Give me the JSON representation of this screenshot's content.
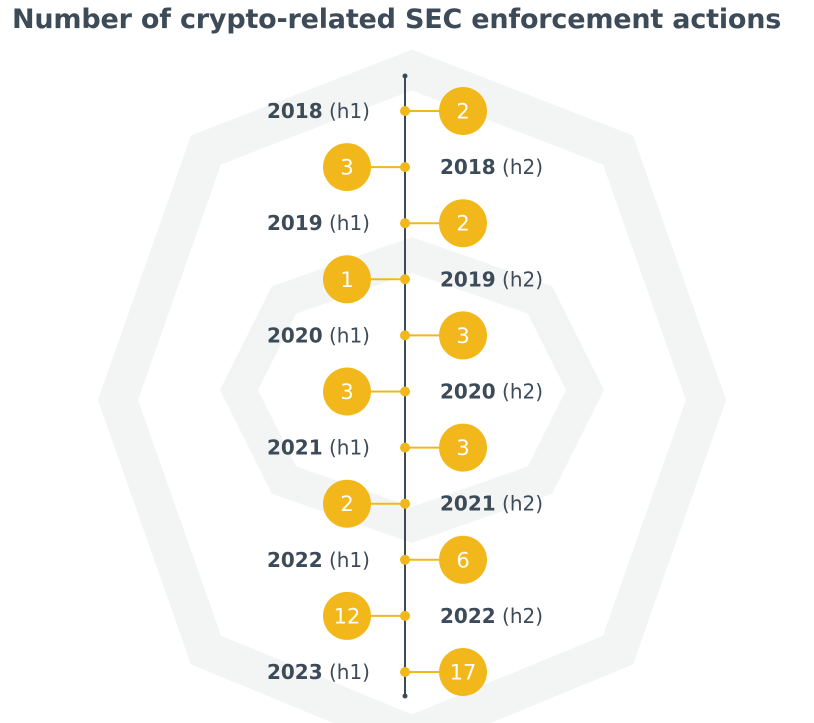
{
  "title": "Number of crypto-related SEC enforcement actions",
  "colors": {
    "accent": "#f2b81b",
    "line": "#3d4b58",
    "text": "#3d4b58",
    "background_pattern": "#f4f6f6"
  },
  "chart_data": {
    "type": "timeline",
    "title": "Number of crypto-related SEC enforcement actions",
    "orientation": "vertical",
    "points": [
      {
        "year": "2018",
        "half": "(h1)",
        "value": 2
      },
      {
        "year": "2018",
        "half": "(h2)",
        "value": 3
      },
      {
        "year": "2019",
        "half": "(h1)",
        "value": 2
      },
      {
        "year": "2019",
        "half": "(h2)",
        "value": 1
      },
      {
        "year": "2020",
        "half": "(h1)",
        "value": 3
      },
      {
        "year": "2020",
        "half": "(h2)",
        "value": 3
      },
      {
        "year": "2021",
        "half": "(h1)",
        "value": 3
      },
      {
        "year": "2021",
        "half": "(h2)",
        "value": 2
      },
      {
        "year": "2022",
        "half": "(h1)",
        "value": 6
      },
      {
        "year": "2022",
        "half": "(h2)",
        "value": 12
      },
      {
        "year": "2023",
        "half": "(h1)",
        "value": 17
      }
    ]
  }
}
